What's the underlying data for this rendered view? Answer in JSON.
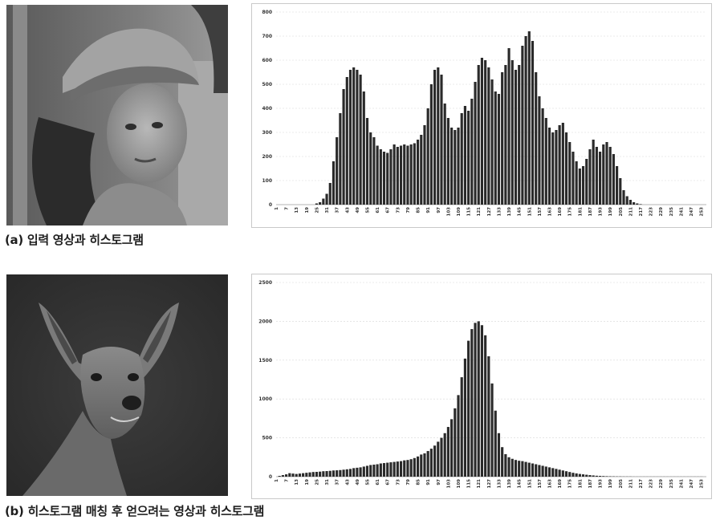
{
  "captions": {
    "a": "(a) 입력 영상과 히스토그램",
    "b": "(b) 히스토그램 매칭 후 얻으려는 영상과 히스토그램"
  },
  "colors": {
    "bar": "#2a2a2a",
    "grid": "#d8d8d8"
  },
  "images": {
    "a": {
      "subject": "woman with hat portrait (grayscale)"
    },
    "b": {
      "subject": "young deer portrait (grayscale)"
    }
  },
  "chart_data": [
    {
      "type": "bar",
      "title": "",
      "xlabel": "",
      "ylabel": "",
      "ylim": [
        0,
        800
      ],
      "yticks": [
        0,
        100,
        200,
        300,
        400,
        500,
        600,
        700,
        800
      ],
      "xtick_labels": [
        "1",
        "7",
        "13",
        "19",
        "25",
        "31",
        "37",
        "43",
        "49",
        "55",
        "61",
        "67",
        "73",
        "79",
        "85",
        "91",
        "97",
        "103",
        "109",
        "115",
        "121",
        "127",
        "133",
        "139",
        "145",
        "151",
        "157",
        "163",
        "169",
        "175",
        "181",
        "187",
        "193",
        "199",
        "205",
        "211",
        "217",
        "223",
        "229",
        "235",
        "241",
        "247",
        "253"
      ],
      "grid": true,
      "x": [
        25,
        27,
        29,
        31,
        33,
        35,
        37,
        39,
        41,
        43,
        45,
        47,
        49,
        51,
        53,
        55,
        57,
        59,
        61,
        63,
        65,
        67,
        69,
        71,
        73,
        75,
        77,
        79,
        81,
        83,
        85,
        87,
        89,
        91,
        93,
        95,
        97,
        99,
        101,
        103,
        105,
        107,
        109,
        111,
        113,
        115,
        117,
        119,
        121,
        123,
        125,
        127,
        129,
        131,
        133,
        135,
        137,
        139,
        141,
        143,
        145,
        147,
        149,
        151,
        153,
        155,
        157,
        159,
        161,
        163,
        165,
        167,
        169,
        171,
        173,
        175,
        177,
        179,
        181,
        183,
        185,
        187,
        189,
        191,
        193,
        195,
        197,
        199,
        201,
        203,
        205,
        207,
        209,
        211,
        213,
        215,
        217,
        219,
        221,
        223,
        225,
        227,
        229
      ],
      "values": [
        5,
        10,
        25,
        45,
        90,
        180,
        280,
        380,
        480,
        530,
        560,
        570,
        560,
        540,
        470,
        360,
        300,
        280,
        245,
        230,
        220,
        215,
        230,
        250,
        240,
        245,
        250,
        245,
        250,
        255,
        270,
        290,
        330,
        400,
        500,
        560,
        570,
        540,
        420,
        360,
        320,
        310,
        320,
        380,
        410,
        390,
        440,
        510,
        580,
        610,
        600,
        570,
        520,
        470,
        460,
        550,
        580,
        650,
        600,
        560,
        580,
        660,
        700,
        720,
        680,
        550,
        450,
        400,
        360,
        320,
        300,
        310,
        330,
        340,
        300,
        260,
        220,
        180,
        150,
        160,
        190,
        230,
        270,
        240,
        220,
        250,
        260,
        240,
        210,
        160,
        110,
        60,
        35,
        20,
        10,
        5,
        2,
        0,
        0,
        0,
        0,
        0,
        0
      ]
    },
    {
      "type": "bar",
      "title": "",
      "xlabel": "",
      "ylabel": "",
      "ylim": [
        0,
        2500
      ],
      "yticks": [
        0,
        500,
        1000,
        1500,
        2000,
        2500
      ],
      "xtick_labels": [
        "1",
        "7",
        "13",
        "19",
        "25",
        "31",
        "37",
        "43",
        "49",
        "55",
        "61",
        "67",
        "73",
        "79",
        "85",
        "91",
        "97",
        "103",
        "109",
        "115",
        "121",
        "127",
        "133",
        "139",
        "145",
        "151",
        "157",
        "163",
        "169",
        "175",
        "181",
        "187",
        "193",
        "199",
        "205",
        "211",
        "217",
        "223",
        "229",
        "235",
        "241",
        "247",
        "253"
      ],
      "grid": true,
      "x": [
        3,
        5,
        7,
        9,
        11,
        13,
        15,
        17,
        19,
        21,
        23,
        25,
        27,
        29,
        31,
        33,
        35,
        37,
        39,
        41,
        43,
        45,
        47,
        49,
        51,
        53,
        55,
        57,
        59,
        61,
        63,
        65,
        67,
        69,
        71,
        73,
        75,
        77,
        79,
        81,
        83,
        85,
        87,
        89,
        91,
        93,
        95,
        97,
        99,
        101,
        103,
        105,
        107,
        109,
        111,
        113,
        115,
        117,
        119,
        121,
        123,
        125,
        127,
        129,
        131,
        133,
        135,
        137,
        139,
        141,
        143,
        145,
        147,
        149,
        151,
        153,
        155,
        157,
        159,
        161,
        163,
        165,
        167,
        169,
        171,
        173,
        175,
        177,
        179,
        181,
        183,
        185,
        187,
        189,
        191,
        193,
        195,
        197,
        199,
        201,
        203,
        205,
        207,
        209,
        211,
        213,
        215,
        217,
        219,
        221,
        223,
        225,
        227,
        229,
        231,
        233,
        235,
        237,
        239,
        241,
        243,
        245,
        247,
        249,
        251,
        253,
        255
      ],
      "values": [
        10,
        20,
        30,
        45,
        40,
        35,
        40,
        45,
        50,
        55,
        60,
        62,
        65,
        70,
        72,
        75,
        80,
        82,
        85,
        90,
        95,
        100,
        110,
        115,
        120,
        130,
        140,
        150,
        155,
        160,
        170,
        175,
        180,
        185,
        190,
        195,
        200,
        210,
        215,
        225,
        240,
        260,
        285,
        300,
        330,
        360,
        400,
        450,
        500,
        560,
        640,
        740,
        880,
        1050,
        1280,
        1520,
        1750,
        1900,
        1980,
        2000,
        1950,
        1820,
        1550,
        1200,
        850,
        560,
        380,
        290,
        250,
        230,
        215,
        205,
        200,
        190,
        180,
        170,
        160,
        150,
        140,
        130,
        120,
        110,
        100,
        90,
        80,
        70,
        60,
        50,
        42,
        35,
        30,
        25,
        20,
        16,
        12,
        10,
        8,
        6,
        5,
        4,
        3,
        3,
        2,
        2,
        2,
        1,
        1,
        1,
        1,
        1,
        1,
        1,
        1,
        1,
        1,
        1,
        1,
        1,
        1,
        1,
        1,
        1,
        1,
        1,
        1,
        1,
        0
      ]
    }
  ]
}
